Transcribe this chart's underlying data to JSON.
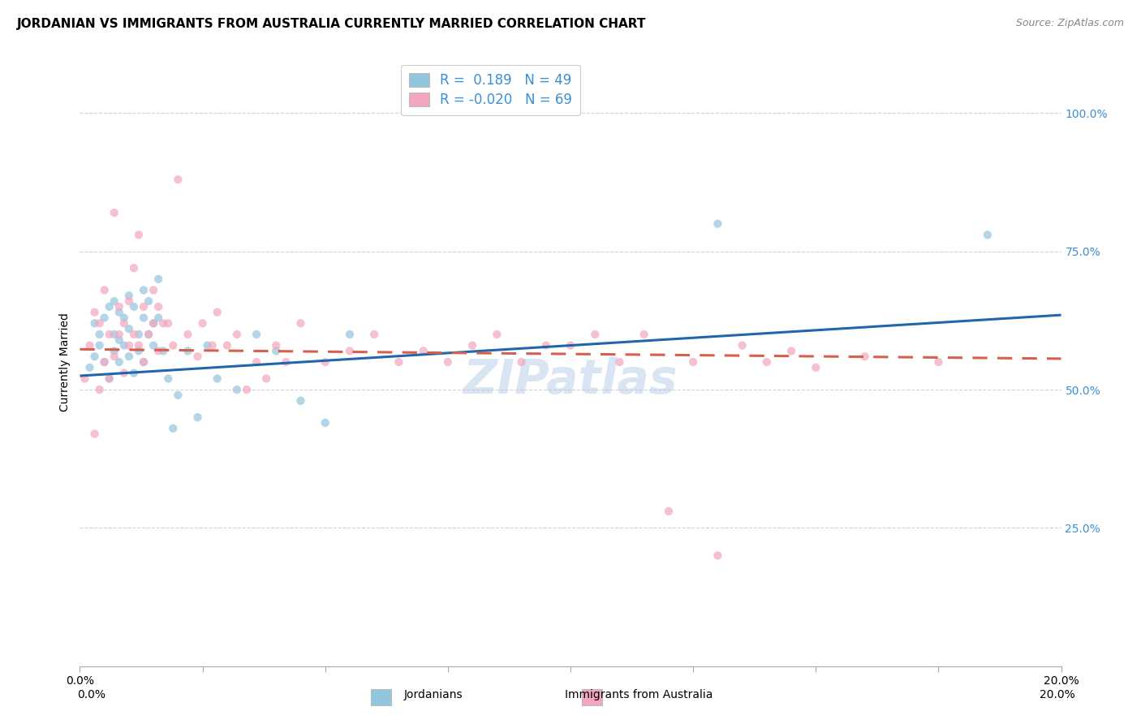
{
  "title": "JORDANIAN VS IMMIGRANTS FROM AUSTRALIA CURRENTLY MARRIED CORRELATION CHART",
  "source": "Source: ZipAtlas.com",
  "ylabel": "Currently Married",
  "xmin": 0.0,
  "xmax": 0.2,
  "ymin": 0.0,
  "ymax": 1.1,
  "yticks": [
    0.25,
    0.5,
    0.75,
    1.0
  ],
  "ytick_labels": [
    "25.0%",
    "50.0%",
    "75.0%",
    "100.0%"
  ],
  "legend_label1": "Jordanians",
  "legend_label2": "Immigrants from Australia",
  "blue_color": "#92c5de",
  "pink_color": "#f4a6be",
  "blue_line_color": "#2166ac",
  "pink_line_color": "#d6604d",
  "watermark": "ZIPatlas",
  "blue_scatter_x": [
    0.002,
    0.003,
    0.003,
    0.004,
    0.004,
    0.005,
    0.005,
    0.006,
    0.006,
    0.007,
    0.007,
    0.007,
    0.008,
    0.008,
    0.008,
    0.009,
    0.009,
    0.01,
    0.01,
    0.01,
    0.011,
    0.011,
    0.012,
    0.012,
    0.013,
    0.013,
    0.013,
    0.014,
    0.014,
    0.015,
    0.015,
    0.016,
    0.016,
    0.017,
    0.018,
    0.019,
    0.02,
    0.022,
    0.024,
    0.026,
    0.028,
    0.032,
    0.036,
    0.04,
    0.045,
    0.05,
    0.055,
    0.13,
    0.185
  ],
  "blue_scatter_y": [
    0.54,
    0.56,
    0.62,
    0.58,
    0.6,
    0.55,
    0.63,
    0.52,
    0.65,
    0.57,
    0.6,
    0.66,
    0.55,
    0.59,
    0.64,
    0.58,
    0.63,
    0.56,
    0.61,
    0.67,
    0.53,
    0.65,
    0.6,
    0.57,
    0.63,
    0.55,
    0.68,
    0.6,
    0.66,
    0.62,
    0.58,
    0.7,
    0.63,
    0.57,
    0.52,
    0.43,
    0.49,
    0.57,
    0.45,
    0.58,
    0.52,
    0.5,
    0.6,
    0.57,
    0.48,
    0.44,
    0.6,
    0.8,
    0.78
  ],
  "pink_scatter_x": [
    0.001,
    0.002,
    0.003,
    0.003,
    0.004,
    0.004,
    0.005,
    0.005,
    0.006,
    0.006,
    0.007,
    0.007,
    0.008,
    0.008,
    0.009,
    0.009,
    0.01,
    0.01,
    0.011,
    0.011,
    0.012,
    0.012,
    0.013,
    0.013,
    0.014,
    0.015,
    0.015,
    0.016,
    0.016,
    0.017,
    0.018,
    0.019,
    0.02,
    0.022,
    0.024,
    0.025,
    0.027,
    0.028,
    0.03,
    0.032,
    0.034,
    0.036,
    0.038,
    0.04,
    0.042,
    0.045,
    0.05,
    0.055,
    0.06,
    0.065,
    0.07,
    0.075,
    0.08,
    0.085,
    0.09,
    0.095,
    0.1,
    0.105,
    0.11,
    0.115,
    0.12,
    0.125,
    0.13,
    0.135,
    0.14,
    0.145,
    0.15,
    0.16,
    0.175
  ],
  "pink_scatter_y": [
    0.52,
    0.58,
    0.42,
    0.64,
    0.5,
    0.62,
    0.55,
    0.68,
    0.52,
    0.6,
    0.82,
    0.56,
    0.6,
    0.65,
    0.53,
    0.62,
    0.58,
    0.66,
    0.6,
    0.72,
    0.78,
    0.58,
    0.55,
    0.65,
    0.6,
    0.62,
    0.68,
    0.57,
    0.65,
    0.62,
    0.62,
    0.58,
    0.88,
    0.6,
    0.56,
    0.62,
    0.58,
    0.64,
    0.58,
    0.6,
    0.5,
    0.55,
    0.52,
    0.58,
    0.55,
    0.62,
    0.55,
    0.57,
    0.6,
    0.55,
    0.57,
    0.55,
    0.58,
    0.6,
    0.55,
    0.58,
    0.58,
    0.6,
    0.55,
    0.6,
    0.28,
    0.55,
    0.2,
    0.58,
    0.55,
    0.57,
    0.54,
    0.56,
    0.55
  ],
  "title_fontsize": 11,
  "source_fontsize": 9,
  "axis_label_fontsize": 10,
  "tick_fontsize": 10,
  "legend_fontsize": 12,
  "watermark_fontsize": 42,
  "watermark_color": "#aec6e8",
  "watermark_alpha": 0.45,
  "background_color": "#ffffff",
  "grid_color": "#c8c8c8",
  "grid_alpha": 0.8,
  "marker_size": 55,
  "marker_alpha": 0.7,
  "line_width": 2.2
}
